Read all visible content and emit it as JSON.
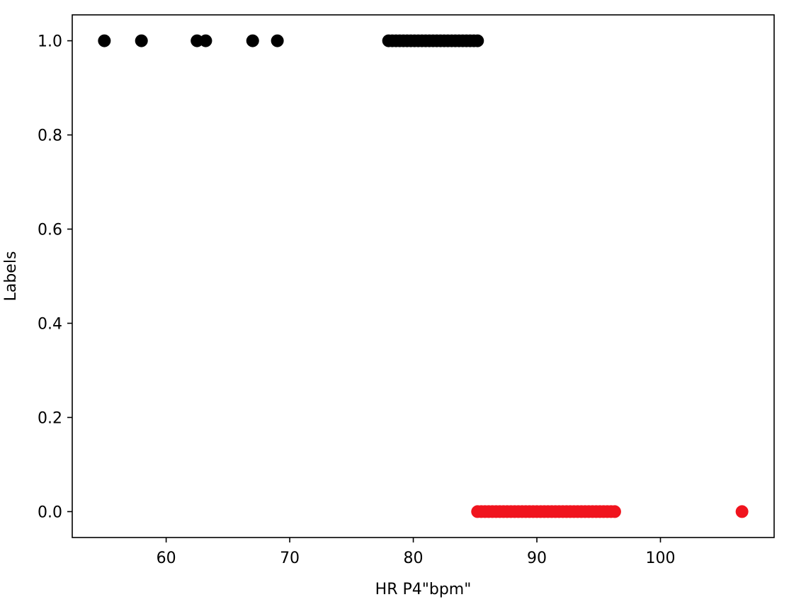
{
  "chart_data": {
    "type": "scatter",
    "title": "",
    "xlabel": "HR P4\"bpm\"",
    "ylabel": "Labels",
    "xlim": [
      52.4,
      109.2
    ],
    "ylim": [
      -0.055,
      1.055
    ],
    "xticks": [
      60,
      70,
      80,
      90,
      100
    ],
    "xtick_labels": [
      "60",
      "70",
      "80",
      "90",
      "100"
    ],
    "yticks": [
      0.0,
      0.2,
      0.4,
      0.6,
      0.8,
      1.0
    ],
    "ytick_labels": [
      "0.0",
      "0.2",
      "0.4",
      "0.6",
      "0.8",
      "1.0"
    ],
    "grid": false,
    "legend": "none",
    "series": [
      {
        "color": "#000000",
        "x": [
          55.0,
          58.0,
          62.5,
          63.2,
          67.0,
          69.0,
          78.0,
          78.3,
          78.6,
          78.9,
          79.2,
          79.5,
          79.8,
          80.1,
          80.4,
          80.7,
          81.0,
          81.3,
          81.6,
          81.9,
          82.2,
          82.5,
          82.8,
          83.1,
          83.4,
          83.7,
          84.0,
          84.3,
          84.6,
          84.9,
          85.2
        ],
        "y": [
          1,
          1,
          1,
          1,
          1,
          1,
          1,
          1,
          1,
          1,
          1,
          1,
          1,
          1,
          1,
          1,
          1,
          1,
          1,
          1,
          1,
          1,
          1,
          1,
          1,
          1,
          1,
          1,
          1,
          1,
          1
        ]
      },
      {
        "color": "#f0141e",
        "x": [
          85.2,
          85.5,
          85.8,
          86.1,
          86.4,
          86.7,
          87.0,
          87.3,
          87.6,
          87.9,
          88.2,
          88.5,
          88.8,
          89.1,
          89.4,
          89.7,
          90.0,
          90.3,
          90.6,
          90.9,
          91.2,
          91.5,
          91.8,
          92.1,
          92.4,
          92.7,
          93.0,
          93.3,
          93.6,
          93.9,
          94.2,
          94.5,
          94.8,
          95.1,
          95.4,
          95.7,
          96.0,
          96.3,
          106.6
        ],
        "y": [
          0,
          0,
          0,
          0,
          0,
          0,
          0,
          0,
          0,
          0,
          0,
          0,
          0,
          0,
          0,
          0,
          0,
          0,
          0,
          0,
          0,
          0,
          0,
          0,
          0,
          0,
          0,
          0,
          0,
          0,
          0,
          0,
          0,
          0,
          0,
          0,
          0,
          0,
          0
        ]
      }
    ]
  }
}
